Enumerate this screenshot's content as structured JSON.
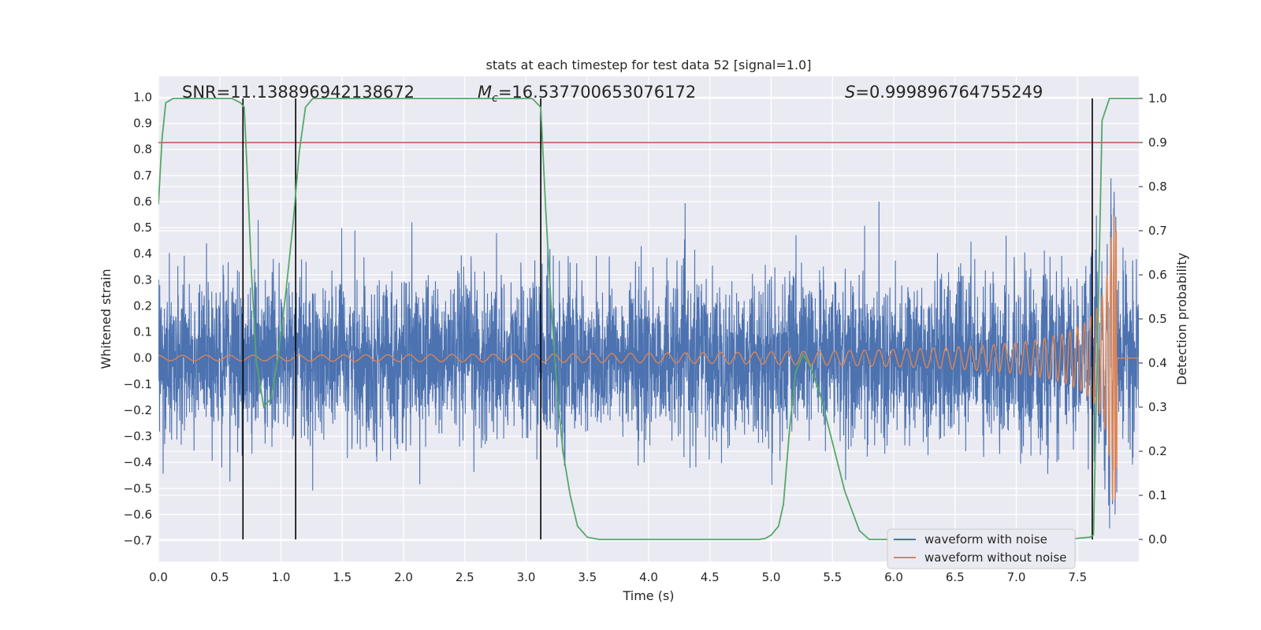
{
  "chart_data": {
    "type": "line",
    "title": "stats at each timestep for test data 52 [signal=1.0]",
    "xlabel": "Time (s)",
    "ylabel": "Whitened strain",
    "y2label": "Detection probability",
    "xlim": [
      0.0,
      8.0
    ],
    "ylim": [
      -0.78,
      1.08
    ],
    "y2lim": [
      -0.05,
      1.05
    ],
    "xticks": [
      "0.0",
      "0.5",
      "1.0",
      "1.5",
      "2.0",
      "2.5",
      "3.0",
      "3.5",
      "4.0",
      "4.5",
      "5.0",
      "5.5",
      "6.0",
      "6.5",
      "7.0",
      "7.5"
    ],
    "yticks": [
      "1.0",
      "0.9",
      "0.8",
      "0.7",
      "0.6",
      "0.5",
      "0.4",
      "0.3",
      "0.2",
      "0.1",
      "0.0",
      "−0.1",
      "−0.2",
      "−0.3",
      "−0.4",
      "−0.5",
      "−0.6",
      "−0.7"
    ],
    "y2ticks": [
      "1.0",
      "0.9",
      "0.8",
      "0.7",
      "0.6",
      "0.5",
      "0.4",
      "0.3",
      "0.2",
      "0.1",
      "0.0"
    ],
    "grid": true,
    "legend_position": "lower-right",
    "stats": {
      "snr": "SNR=11.138896942138672",
      "mc_symbol": "M",
      "mc_sub": "c",
      "mc_value": "=16.537700653076172",
      "s_symbol": "S",
      "s_value": "=0.999896764755249"
    },
    "series": [
      {
        "name": "waveform with noise",
        "axis": "left",
        "color": "#4c72b0",
        "noise_band_sigma": 0.15,
        "peak_y_range": [
          -0.7,
          1.0
        ]
      },
      {
        "name": "waveform without noise",
        "axis": "left",
        "color": "#dd8452",
        "chirp_start_amplitude": 0.01,
        "chirp_peak_amplitude": 0.55,
        "chirp_merger_time": 7.82
      },
      {
        "name": "detection probability",
        "axis": "right",
        "color": "#55a868",
        "x": [
          0.0,
          0.03,
          0.06,
          0.12,
          0.2,
          0.3,
          0.45,
          0.6,
          0.67,
          0.7,
          0.73,
          0.76,
          0.8,
          0.86,
          0.92,
          0.98,
          1.04,
          1.1,
          1.15,
          1.2,
          1.26,
          1.4,
          2.0,
          2.6,
          3.05,
          3.12,
          3.16,
          3.2,
          3.25,
          3.3,
          3.36,
          3.42,
          3.5,
          3.6,
          4.0,
          4.5,
          4.8,
          4.9,
          4.95,
          5.0,
          5.06,
          5.1,
          5.15,
          5.2,
          5.26,
          5.32,
          5.4,
          5.5,
          5.6,
          5.72,
          5.8,
          6.0,
          6.5,
          7.0,
          7.4,
          7.6,
          7.63,
          7.66,
          7.7,
          7.76,
          7.82,
          8.0
        ],
        "y": [
          0.76,
          0.91,
          0.99,
          1.0,
          1.0,
          1.0,
          1.0,
          1.0,
          0.99,
          0.98,
          0.8,
          0.6,
          0.4,
          0.3,
          0.32,
          0.42,
          0.56,
          0.72,
          0.88,
          0.98,
          1.0,
          1.0,
          1.0,
          1.0,
          1.0,
          0.98,
          0.75,
          0.55,
          0.35,
          0.2,
          0.1,
          0.03,
          0.005,
          0.0,
          0.0,
          0.0,
          0.0,
          0.0,
          0.002,
          0.01,
          0.03,
          0.08,
          0.25,
          0.38,
          0.42,
          0.39,
          0.33,
          0.22,
          0.11,
          0.02,
          0.0,
          0.0,
          0.0,
          0.0,
          0.0,
          0.005,
          0.01,
          0.4,
          0.95,
          1.0,
          1.0,
          1.0
        ]
      }
    ],
    "threshold": {
      "y2": 0.9,
      "color": "#c44e52"
    },
    "trigger_lines_x": [
      0.69,
      1.12,
      3.12,
      7.62
    ]
  }
}
